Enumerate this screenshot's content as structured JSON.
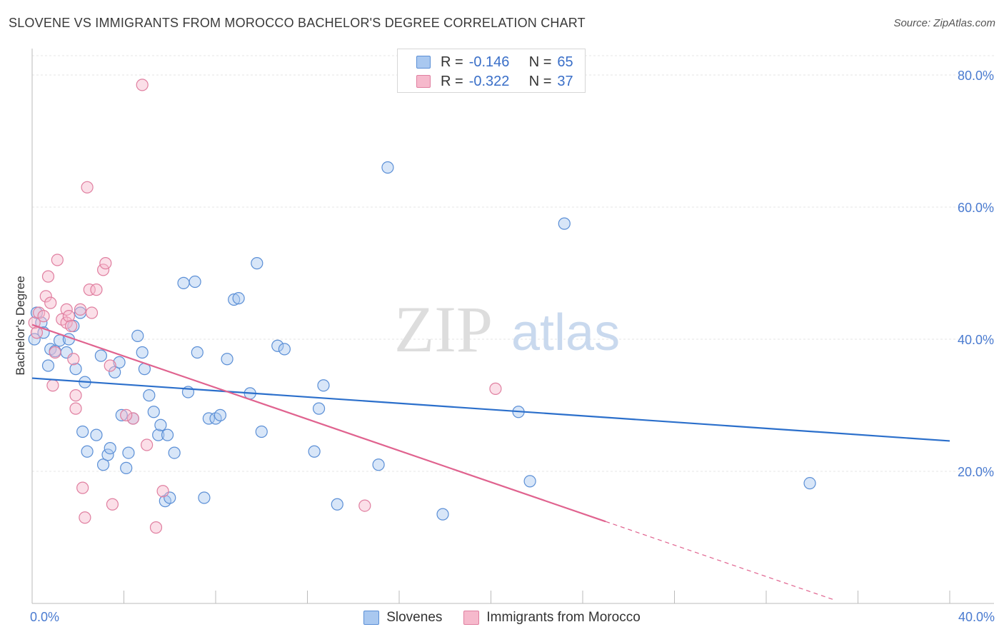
{
  "title": "SLOVENE VS IMMIGRANTS FROM MOROCCO BACHELOR'S DEGREE CORRELATION CHART",
  "source": "Source: ZipAtlas.com",
  "watermark": {
    "zip": "ZIP",
    "atlas": "atlas"
  },
  "colors": {
    "blue_fill": "#a9c8f0",
    "blue_stroke": "#5b8fd6",
    "blue_line": "#2b6fcb",
    "pink_fill": "#f6b9cc",
    "pink_stroke": "#e07fa0",
    "pink_line": "#e0638f",
    "grid": "#e6e6e6",
    "axis_text": "#4a7bd0"
  },
  "stats": [
    {
      "r_label": "R =",
      "r_value": "-0.146",
      "n_label": "N =",
      "n_value": "65",
      "color": "blue"
    },
    {
      "r_label": "R =",
      "r_value": "-0.322",
      "n_label": "N =",
      "n_value": "37",
      "color": "pink"
    }
  ],
  "chart_data": {
    "type": "scatter",
    "title": "SLOVENE VS IMMIGRANTS FROM MOROCCO BACHELOR'S DEGREE CORRELATION CHART",
    "xlabel": "",
    "ylabel": "Bachelor's Degree",
    "xlim": [
      0,
      40
    ],
    "ylim": [
      0,
      84
    ],
    "x_ticks": [
      0,
      40
    ],
    "x_tick_labels": [
      "0.0%",
      "40.0%"
    ],
    "x_minor_ticks": [
      4,
      8,
      12,
      16,
      20,
      24,
      28,
      32,
      36,
      40
    ],
    "y_ticks": [
      20,
      40,
      60,
      80
    ],
    "y_tick_labels": [
      "20.0%",
      "40.0%",
      "60.0%",
      "80.0%"
    ],
    "grid": true,
    "legend_position": "bottom-center",
    "series": [
      {
        "name": "Slovenes",
        "color": "blue",
        "trend": {
          "x": [
            0,
            40
          ],
          "y": [
            34.1,
            24.6
          ],
          "dashed_to": null
        },
        "points": [
          [
            0.1,
            40.0
          ],
          [
            0.2,
            44.0
          ],
          [
            0.4,
            42.5
          ],
          [
            0.5,
            41.0
          ],
          [
            0.7,
            36.0
          ],
          [
            0.8,
            38.5
          ],
          [
            1.0,
            38.2
          ],
          [
            1.2,
            39.8
          ],
          [
            1.5,
            38.0
          ],
          [
            1.6,
            40.0
          ],
          [
            1.8,
            42.0
          ],
          [
            1.9,
            35.5
          ],
          [
            2.1,
            44.0
          ],
          [
            2.3,
            33.5
          ],
          [
            2.2,
            26.0
          ],
          [
            2.4,
            23.0
          ],
          [
            2.8,
            25.5
          ],
          [
            3.0,
            37.5
          ],
          [
            3.1,
            21.0
          ],
          [
            3.3,
            22.5
          ],
          [
            3.4,
            23.5
          ],
          [
            3.6,
            35.0
          ],
          [
            3.8,
            36.5
          ],
          [
            3.9,
            28.5
          ],
          [
            4.1,
            20.5
          ],
          [
            4.2,
            22.8
          ],
          [
            4.4,
            28.0
          ],
          [
            4.6,
            40.5
          ],
          [
            4.8,
            38.0
          ],
          [
            4.9,
            35.5
          ],
          [
            5.1,
            31.5
          ],
          [
            5.3,
            29.0
          ],
          [
            5.5,
            25.5
          ],
          [
            5.6,
            27.0
          ],
          [
            5.8,
            15.5
          ],
          [
            5.9,
            25.5
          ],
          [
            6.0,
            16.0
          ],
          [
            6.2,
            22.8
          ],
          [
            6.6,
            48.5
          ],
          [
            6.8,
            32.0
          ],
          [
            7.1,
            48.7
          ],
          [
            7.2,
            38.0
          ],
          [
            7.5,
            16.0
          ],
          [
            7.7,
            28.0
          ],
          [
            8.0,
            28.0
          ],
          [
            8.2,
            28.5
          ],
          [
            8.5,
            37.0
          ],
          [
            8.8,
            46.0
          ],
          [
            9.0,
            46.2
          ],
          [
            9.5,
            31.8
          ],
          [
            9.8,
            51.5
          ],
          [
            10.0,
            26.0
          ],
          [
            10.7,
            39.0
          ],
          [
            11.0,
            38.5
          ],
          [
            12.3,
            23.0
          ],
          [
            12.5,
            29.5
          ],
          [
            12.7,
            33.0
          ],
          [
            13.3,
            15.0
          ],
          [
            15.1,
            21.0
          ],
          [
            15.5,
            66.0
          ],
          [
            17.9,
            13.5
          ],
          [
            21.2,
            29.0
          ],
          [
            21.7,
            18.5
          ],
          [
            23.2,
            57.5
          ],
          [
            33.9,
            18.2
          ]
        ]
      },
      {
        "name": "Immigrants from Morocco",
        "color": "pink",
        "trend": {
          "x": [
            0,
            25
          ],
          "y": [
            42.2,
            12.4
          ],
          "dashed_to": [
            35,
            0.5
          ]
        },
        "points": [
          [
            0.1,
            42.5
          ],
          [
            0.2,
            41.0
          ],
          [
            0.3,
            44.0
          ],
          [
            0.5,
            43.5
          ],
          [
            0.6,
            46.5
          ],
          [
            0.7,
            49.5
          ],
          [
            0.8,
            45.5
          ],
          [
            0.9,
            33.0
          ],
          [
            1.0,
            38.0
          ],
          [
            1.1,
            52.0
          ],
          [
            1.3,
            43.0
          ],
          [
            1.5,
            42.5
          ],
          [
            1.5,
            44.5
          ],
          [
            1.6,
            43.5
          ],
          [
            1.7,
            42.0
          ],
          [
            1.8,
            37.0
          ],
          [
            1.9,
            31.5
          ],
          [
            1.9,
            29.5
          ],
          [
            2.1,
            44.5
          ],
          [
            2.2,
            17.5
          ],
          [
            2.3,
            13.0
          ],
          [
            2.4,
            63.0
          ],
          [
            2.5,
            47.5
          ],
          [
            2.6,
            44.0
          ],
          [
            2.8,
            47.5
          ],
          [
            3.1,
            50.5
          ],
          [
            3.2,
            51.5
          ],
          [
            3.4,
            36.0
          ],
          [
            3.5,
            15.0
          ],
          [
            4.4,
            28.0
          ],
          [
            4.8,
            78.5
          ],
          [
            5.0,
            24.0
          ],
          [
            5.4,
            11.5
          ],
          [
            5.7,
            17.0
          ],
          [
            14.5,
            14.8
          ],
          [
            20.2,
            32.5
          ],
          [
            4.1,
            28.5
          ]
        ]
      }
    ]
  },
  "legend": [
    {
      "label": "Slovenes",
      "color": "blue"
    },
    {
      "label": "Immigrants from Morocco",
      "color": "pink"
    }
  ]
}
